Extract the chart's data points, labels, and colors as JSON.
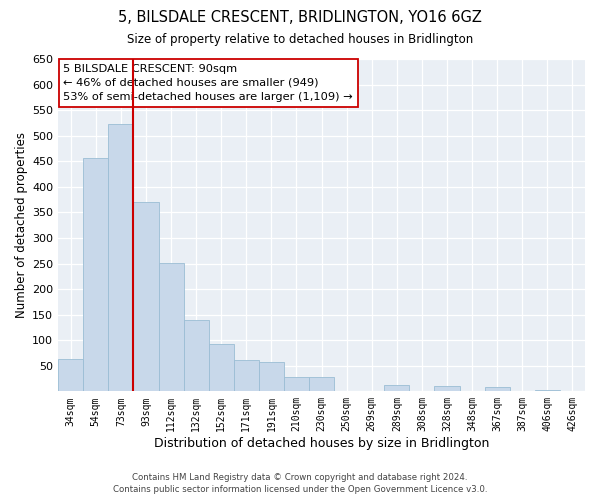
{
  "title": "5, BILSDALE CRESCENT, BRIDLINGTON, YO16 6GZ",
  "subtitle": "Size of property relative to detached houses in Bridlington",
  "xlabel": "Distribution of detached houses by size in Bridlington",
  "ylabel": "Number of detached properties",
  "bin_labels": [
    "34sqm",
    "54sqm",
    "73sqm",
    "93sqm",
    "112sqm",
    "132sqm",
    "152sqm",
    "171sqm",
    "191sqm",
    "210sqm",
    "230sqm",
    "250sqm",
    "269sqm",
    "289sqm",
    "308sqm",
    "328sqm",
    "348sqm",
    "367sqm",
    "387sqm",
    "406sqm",
    "426sqm"
  ],
  "bar_heights": [
    63,
    456,
    522,
    370,
    251,
    140,
    93,
    62,
    57,
    28,
    28,
    0,
    0,
    13,
    0,
    10,
    0,
    8,
    0,
    3,
    0
  ],
  "bar_color": "#c8d8ea",
  "bar_edge_color": "#9bbdd4",
  "vline_color": "#cc0000",
  "ylim": [
    0,
    650
  ],
  "yticks": [
    0,
    50,
    100,
    150,
    200,
    250,
    300,
    350,
    400,
    450,
    500,
    550,
    600,
    650
  ],
  "annotation_line1": "5 BILSDALE CRESCENT: 90sqm",
  "annotation_line2": "← 46% of detached houses are smaller (949)",
  "annotation_line3": "53% of semi-detached houses are larger (1,109) →",
  "annotation_box_color": "#ffffff",
  "annotation_border_color": "#cc0000",
  "footer_line1": "Contains HM Land Registry data © Crown copyright and database right 2024.",
  "footer_line2": "Contains public sector information licensed under the Open Government Licence v3.0.",
  "background_color": "#ffffff",
  "plot_bg_color": "#eaeff5"
}
